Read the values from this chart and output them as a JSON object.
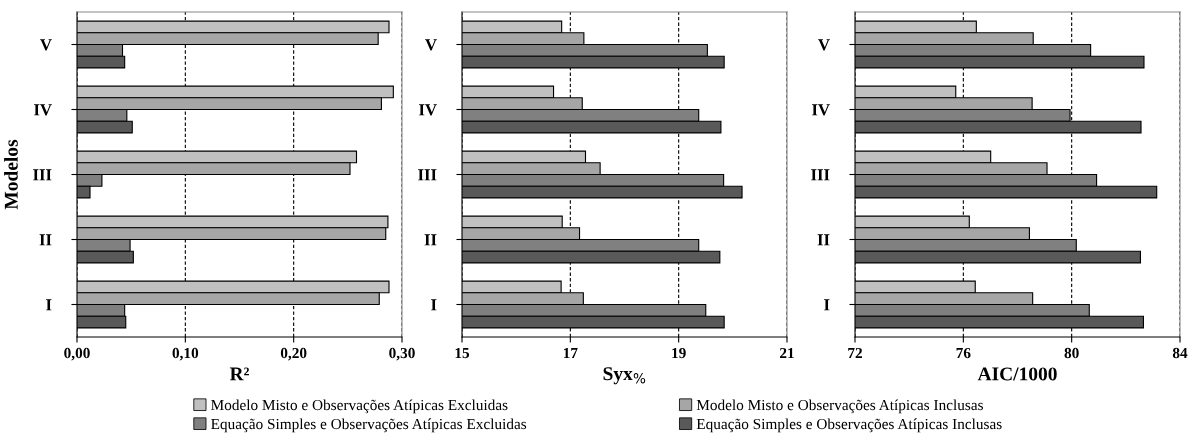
{
  "chart_data": [
    {
      "type": "bar",
      "orientation": "horizontal",
      "ylabel": "Modelos",
      "xlabel": "R²",
      "categories": [
        "V",
        "IV",
        "III",
        "II",
        "I"
      ],
      "xlim": [
        0,
        0.3
      ],
      "xticks": [
        {
          "value": 0,
          "label": "0,00"
        },
        {
          "value": 0.1,
          "label": "0,10"
        },
        {
          "value": 0.2,
          "label": "0,20"
        },
        {
          "value": 0.3,
          "label": "0,30"
        }
      ],
      "grid": "x",
      "legend": "bottom",
      "series": [
        {
          "name": "Modelo Misto e Observações Atípicas Excluidas",
          "color": "#c0c0c0",
          "values": [
            0.288,
            0.292,
            0.258,
            0.287,
            0.288
          ]
        },
        {
          "name": "Modelo Misto e Observações Atípicas Inclusas",
          "color": "#a6a6a6",
          "values": [
            0.278,
            0.281,
            0.252,
            0.285,
            0.279
          ]
        },
        {
          "name": "Equação Simples e Observações Atípicas Excluidas",
          "color": "#808080",
          "values": [
            0.042,
            0.046,
            0.023,
            0.049,
            0.044
          ]
        },
        {
          "name": "Equação Simples e Observações Atípicas Inclusas",
          "color": "#595959",
          "values": [
            0.044,
            0.051,
            0.012,
            0.052,
            0.045
          ]
        }
      ]
    },
    {
      "type": "bar",
      "orientation": "horizontal",
      "xlabel": "Syx$_{%}$",
      "categories": [
        "V",
        "IV",
        "III",
        "II",
        "I"
      ],
      "xlim": [
        15,
        21
      ],
      "xticks": [
        15,
        17,
        19,
        21
      ],
      "grid": "x",
      "series": [
        {
          "color": "#c0c0c0",
          "values": [
            16.84,
            16.69,
            17.28,
            16.85,
            16.83
          ]
        },
        {
          "color": "#a6a6a6",
          "values": [
            17.25,
            17.22,
            17.55,
            17.17,
            17.24
          ]
        },
        {
          "color": "#808080",
          "values": [
            19.53,
            19.37,
            19.83,
            19.37,
            19.5
          ]
        },
        {
          "color": "#595959",
          "values": [
            19.84,
            19.78,
            20.17,
            19.76,
            19.84
          ]
        }
      ]
    },
    {
      "type": "bar",
      "orientation": "horizontal",
      "xlabel": "AIC/1000",
      "categories": [
        "V",
        "IV",
        "III",
        "II",
        "I"
      ],
      "xlim": [
        72,
        84
      ],
      "xticks": [
        72,
        76,
        80,
        84
      ],
      "grid": "x",
      "series": [
        {
          "color": "#c0c0c0",
          "values": [
            76.48,
            75.72,
            77.01,
            76.22,
            76.44
          ]
        },
        {
          "color": "#a6a6a6",
          "values": [
            78.58,
            78.54,
            79.09,
            78.44,
            78.56
          ]
        },
        {
          "color": "#808080",
          "values": [
            80.7,
            79.94,
            80.92,
            80.17,
            80.65
          ]
        },
        {
          "color": "#595959",
          "values": [
            82.67,
            82.56,
            83.14,
            82.54,
            82.65
          ]
        }
      ]
    }
  ]
}
